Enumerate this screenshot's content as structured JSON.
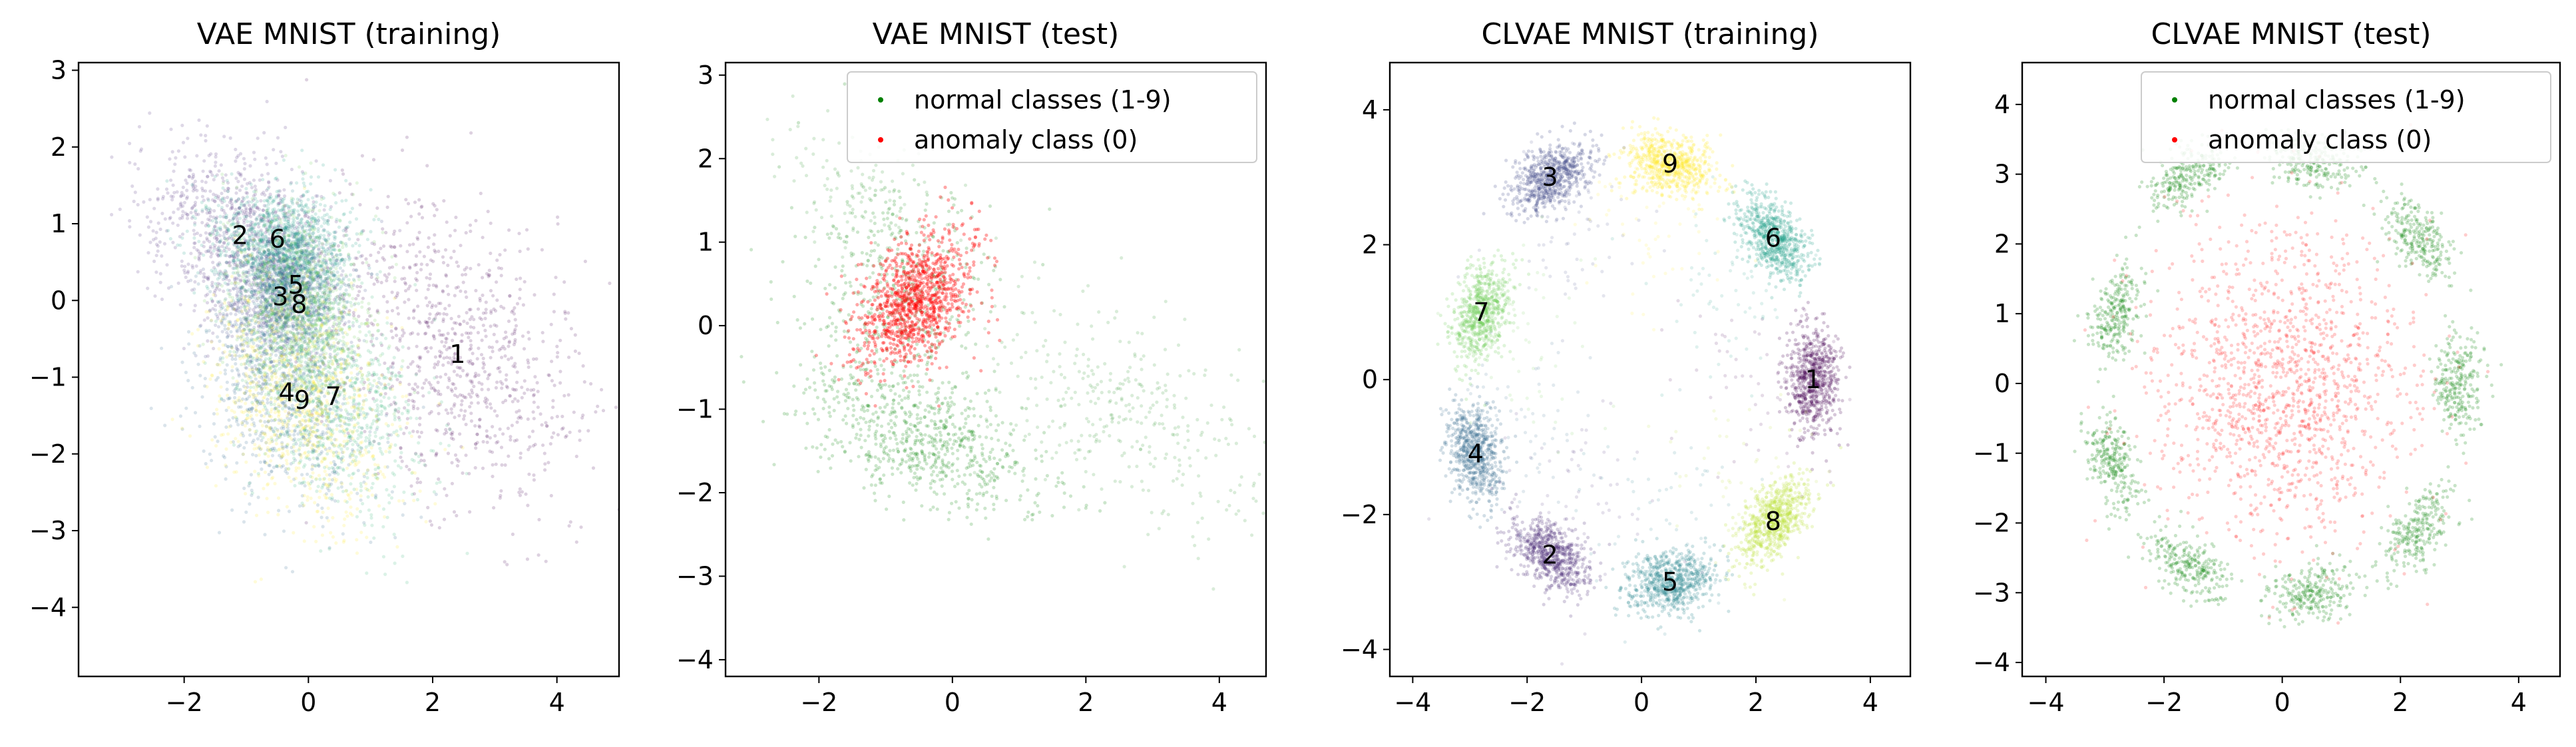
{
  "figure": {
    "panels": [
      {
        "title": "VAE MNIST (training)"
      },
      {
        "title": "VAE MNIST (test)"
      },
      {
        "title": "CLVAE MNIST (training)"
      },
      {
        "title": "CLVAE MNIST (test)"
      }
    ]
  },
  "chart_data": [
    {
      "type": "scatter",
      "title": "VAE MNIST (training)",
      "xlabel": "",
      "ylabel": "",
      "xlim": [
        -3.7,
        5.0
      ],
      "ylim": [
        -4.9,
        3.1
      ],
      "xticks": [
        -2,
        0,
        2,
        4
      ],
      "yticks": [
        -4,
        -3,
        -2,
        -1,
        0,
        1,
        2,
        3
      ],
      "grid": false,
      "colormap": "viridis",
      "class_clusters": [
        {
          "label": "1",
          "center": [
            2.4,
            -0.7
          ],
          "spread": [
            0.8,
            1.2
          ],
          "rotation_deg": 52,
          "color": "#440154"
        },
        {
          "label": "2",
          "center": [
            -1.1,
            0.85
          ],
          "spread": [
            0.55,
            0.8
          ],
          "rotation_deg": 65,
          "color": "#482878"
        },
        {
          "label": "3",
          "center": [
            -0.45,
            0.05
          ],
          "spread": [
            0.45,
            0.45
          ],
          "rotation_deg": 0,
          "color": "#3e4989"
        },
        {
          "label": "4",
          "center": [
            -0.35,
            -1.2
          ],
          "spread": [
            0.6,
            0.75
          ],
          "rotation_deg": 40,
          "color": "#31688e"
        },
        {
          "label": "5",
          "center": [
            -0.2,
            0.2
          ],
          "spread": [
            0.4,
            0.4
          ],
          "rotation_deg": 0,
          "color": "#26828e"
        },
        {
          "label": "6",
          "center": [
            -0.5,
            0.8
          ],
          "spread": [
            0.55,
            0.35
          ],
          "rotation_deg": 0,
          "color": "#1f9e89"
        },
        {
          "label": "7",
          "center": [
            0.4,
            -1.25
          ],
          "spread": [
            0.6,
            0.85
          ],
          "rotation_deg": 35,
          "color": "#35b779"
        },
        {
          "label": "8",
          "center": [
            -0.15,
            -0.05
          ],
          "spread": [
            0.5,
            0.6
          ],
          "rotation_deg": 20,
          "color": "#6ece58"
        },
        {
          "label": "9",
          "center": [
            -0.1,
            -1.3
          ],
          "spread": [
            0.65,
            0.85
          ],
          "rotation_deg": 40,
          "color": "#fde725"
        }
      ]
    },
    {
      "type": "scatter",
      "title": "VAE MNIST (test)",
      "xlabel": "",
      "ylabel": "",
      "xlim": [
        -3.4,
        4.7
      ],
      "ylim": [
        -4.2,
        3.15
      ],
      "xticks": [
        -2,
        0,
        2,
        4
      ],
      "yticks": [
        -4,
        -3,
        -2,
        -1,
        0,
        1,
        2,
        3
      ],
      "grid": false,
      "legend": {
        "placement": "top-right",
        "entries": [
          "normal classes (1-9)",
          "anomaly class (0)"
        ]
      },
      "series": [
        {
          "name": "normal classes (1-9)",
          "color": "#008000",
          "center": [
            -0.6,
            -0.6
          ],
          "spread": [
            1.3,
            1.3
          ]
        },
        {
          "name": "anomaly class (0)",
          "color": "#ff0000",
          "center": [
            -0.55,
            0.3
          ],
          "spread": [
            0.45,
            0.4
          ]
        }
      ]
    },
    {
      "type": "scatter",
      "title": "CLVAE MNIST (training)",
      "xlabel": "",
      "ylabel": "",
      "xlim": [
        -4.4,
        4.7
      ],
      "ylim": [
        -4.4,
        4.7
      ],
      "xticks": [
        -4,
        -2,
        0,
        2,
        4
      ],
      "yticks": [
        -4,
        -2,
        0,
        2,
        4
      ],
      "grid": false,
      "colormap": "viridis",
      "class_clusters": [
        {
          "label": "1",
          "center": [
            3.0,
            0.0
          ],
          "color": "#440154"
        },
        {
          "label": "2",
          "center": [
            -1.6,
            -2.6
          ],
          "color": "#482878"
        },
        {
          "label": "3",
          "center": [
            -1.6,
            3.0
          ],
          "color": "#3e4989"
        },
        {
          "label": "4",
          "center": [
            -2.9,
            -1.1
          ],
          "color": "#31688e"
        },
        {
          "label": "5",
          "center": [
            0.5,
            -3.0
          ],
          "color": "#26828e"
        },
        {
          "label": "6",
          "center": [
            2.3,
            2.1
          ],
          "color": "#1f9e89"
        },
        {
          "label": "7",
          "center": [
            -2.8,
            1.0
          ],
          "color": "#6ece58"
        },
        {
          "label": "8",
          "center": [
            2.3,
            -2.1
          ],
          "color": "#b5de2b"
        },
        {
          "label": "9",
          "center": [
            0.5,
            3.2
          ],
          "color": "#fde725"
        }
      ]
    },
    {
      "type": "scatter",
      "title": "CLVAE MNIST (test)",
      "xlabel": "",
      "ylabel": "",
      "xlim": [
        -4.4,
        4.7
      ],
      "ylim": [
        -4.2,
        4.6
      ],
      "xticks": [
        -4,
        -2,
        0,
        2,
        4
      ],
      "yticks": [
        -4,
        -3,
        -2,
        -1,
        0,
        1,
        2,
        3,
        4
      ],
      "grid": false,
      "legend": {
        "placement": "top-right",
        "entries": [
          "normal classes (1-9)",
          "anomaly class (0)"
        ]
      },
      "series": [
        {
          "name": "normal classes (1-9)",
          "color": "#008000",
          "cluster_centers": [
            [
              3.0,
              0.0
            ],
            [
              -1.6,
              -2.6
            ],
            [
              -1.6,
              3.0
            ],
            [
              -2.9,
              -1.1
            ],
            [
              0.5,
              -3.0
            ],
            [
              2.3,
              2.1
            ],
            [
              -2.8,
              1.0
            ],
            [
              2.3,
              -2.1
            ],
            [
              0.5,
              3.2
            ]
          ]
        },
        {
          "name": "anomaly class (0)",
          "color": "#ff0000",
          "center": [
            0.0,
            0.0
          ],
          "spread": [
            1.1,
            1.1
          ]
        }
      ]
    }
  ]
}
